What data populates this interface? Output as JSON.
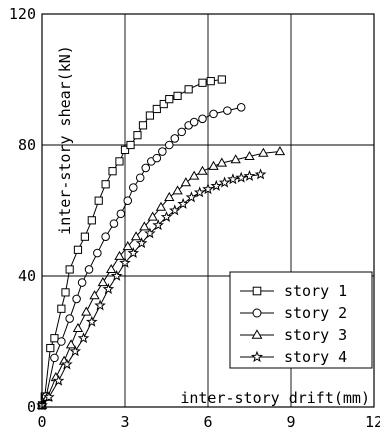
{
  "chart_data": {
    "type": "line",
    "xlabel": "inter-story drift(mm)",
    "ylabel": "inter-story shear(kN)",
    "xlim": [
      0,
      12
    ],
    "ylim": [
      0,
      120
    ],
    "x_ticks": [
      0,
      3,
      6,
      9,
      12
    ],
    "y_ticks": [
      0,
      40,
      80,
      120
    ],
    "x_tick_labels": [
      "0",
      "3",
      "6",
      "9",
      "12"
    ],
    "y_tick_labels": [
      "0",
      "40",
      "80",
      "120"
    ],
    "grid": true,
    "legend_position": "bottom-right",
    "series": [
      {
        "name": "story 1",
        "marker": "square",
        "points": [
          [
            0.0,
            0.5
          ],
          [
            0.1,
            3.2
          ],
          [
            0.3,
            18
          ],
          [
            0.45,
            21
          ],
          [
            0.7,
            30
          ],
          [
            0.85,
            35
          ],
          [
            1.0,
            42
          ],
          [
            1.3,
            48
          ],
          [
            1.55,
            52
          ],
          [
            1.8,
            57
          ],
          [
            2.05,
            63
          ],
          [
            2.3,
            68
          ],
          [
            2.55,
            72
          ],
          [
            2.8,
            75
          ],
          [
            3.0,
            78.5
          ],
          [
            3.2,
            80
          ],
          [
            3.45,
            83
          ],
          [
            3.65,
            86
          ],
          [
            3.9,
            89
          ],
          [
            4.15,
            91
          ],
          [
            4.4,
            92.5
          ],
          [
            4.6,
            94
          ],
          [
            4.9,
            95
          ],
          [
            5.3,
            97
          ],
          [
            5.8,
            99
          ],
          [
            6.1,
            99.5
          ],
          [
            6.5,
            100
          ]
        ]
      },
      {
        "name": "story 2",
        "marker": "circle",
        "points": [
          [
            0.0,
            0.5
          ],
          [
            0.15,
            3.2
          ],
          [
            0.45,
            15
          ],
          [
            0.7,
            20
          ],
          [
            1.0,
            27
          ],
          [
            1.25,
            33
          ],
          [
            1.45,
            38
          ],
          [
            1.7,
            42
          ],
          [
            2.0,
            47
          ],
          [
            2.3,
            52
          ],
          [
            2.6,
            56
          ],
          [
            2.85,
            59
          ],
          [
            3.1,
            63
          ],
          [
            3.3,
            67
          ],
          [
            3.55,
            70
          ],
          [
            3.75,
            73
          ],
          [
            3.95,
            75
          ],
          [
            4.15,
            76
          ],
          [
            4.35,
            78
          ],
          [
            4.6,
            80
          ],
          [
            4.8,
            82
          ],
          [
            5.05,
            84
          ],
          [
            5.3,
            86
          ],
          [
            5.5,
            87
          ],
          [
            5.8,
            88
          ],
          [
            6.2,
            89.5
          ],
          [
            6.7,
            90.5
          ],
          [
            7.2,
            91.5
          ]
        ]
      },
      {
        "name": "story 3",
        "marker": "triangle",
        "points": [
          [
            0.0,
            0.5
          ],
          [
            0.2,
            3
          ],
          [
            0.5,
            9
          ],
          [
            0.8,
            14
          ],
          [
            1.05,
            19
          ],
          [
            1.3,
            24
          ],
          [
            1.6,
            29
          ],
          [
            1.9,
            34
          ],
          [
            2.2,
            38
          ],
          [
            2.5,
            42
          ],
          [
            2.8,
            46
          ],
          [
            3.1,
            49
          ],
          [
            3.4,
            52
          ],
          [
            3.7,
            55
          ],
          [
            4.0,
            58
          ],
          [
            4.3,
            61
          ],
          [
            4.6,
            64
          ],
          [
            4.9,
            66
          ],
          [
            5.2,
            68.5
          ],
          [
            5.5,
            70.5
          ],
          [
            5.8,
            72
          ],
          [
            6.2,
            73.5
          ],
          [
            6.5,
            74.5
          ],
          [
            7.0,
            75.5
          ],
          [
            7.5,
            76.5
          ],
          [
            8.0,
            77.5
          ],
          [
            8.6,
            78
          ]
        ]
      },
      {
        "name": "story 4",
        "marker": "star",
        "points": [
          [
            0.0,
            0.5
          ],
          [
            0.25,
            3
          ],
          [
            0.6,
            8
          ],
          [
            0.9,
            13
          ],
          [
            1.2,
            17
          ],
          [
            1.5,
            21
          ],
          [
            1.8,
            26
          ],
          [
            2.1,
            31
          ],
          [
            2.4,
            36
          ],
          [
            2.7,
            40
          ],
          [
            3.0,
            44
          ],
          [
            3.3,
            47
          ],
          [
            3.6,
            50
          ],
          [
            3.9,
            53
          ],
          [
            4.2,
            55.5
          ],
          [
            4.5,
            58
          ],
          [
            4.8,
            60
          ],
          [
            5.1,
            62
          ],
          [
            5.4,
            64
          ],
          [
            5.7,
            65.5
          ],
          [
            6.0,
            66.5
          ],
          [
            6.3,
            67.5
          ],
          [
            6.6,
            68.5
          ],
          [
            6.9,
            69.5
          ],
          [
            7.2,
            70
          ],
          [
            7.5,
            70.5
          ],
          [
            7.9,
            71
          ]
        ]
      }
    ]
  }
}
